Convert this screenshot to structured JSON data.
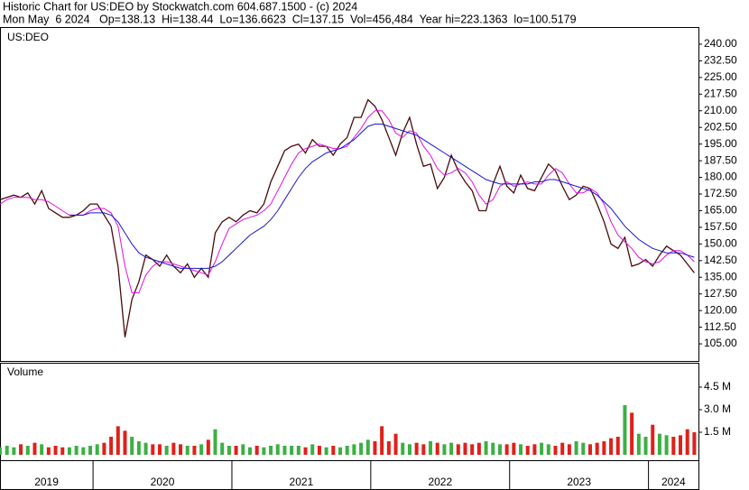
{
  "chart_data": [
    {
      "type": "line",
      "title": "Historic Chart for US:DEO by Stockwatch.com 604.687.1500 - (c) 2024",
      "subtitle": "Mon May  6 2024   Op=138.13  Hi=138.44  Lo=136.6623  Cl=137.15  Vol=456,484  Year hi=223.1363  lo=100.5179",
      "label": "US:DEO",
      "x": [
        2019.33,
        2019.38,
        2019.43,
        2019.48,
        2019.53,
        2019.58,
        2019.63,
        2019.68,
        2019.73,
        2019.78,
        2019.83,
        2019.88,
        2019.93,
        2019.98,
        2020.03,
        2020.08,
        2020.13,
        2020.18,
        2020.23,
        2020.28,
        2020.33,
        2020.38,
        2020.43,
        2020.48,
        2020.53,
        2020.58,
        2020.63,
        2020.68,
        2020.73,
        2020.78,
        2020.83,
        2020.88,
        2020.93,
        2020.98,
        2021.03,
        2021.08,
        2021.13,
        2021.18,
        2021.23,
        2021.28,
        2021.33,
        2021.38,
        2021.43,
        2021.48,
        2021.53,
        2021.58,
        2021.63,
        2021.68,
        2021.73,
        2021.78,
        2021.83,
        2021.88,
        2021.93,
        2021.98,
        2022.03,
        2022.08,
        2022.13,
        2022.18,
        2022.23,
        2022.28,
        2022.33,
        2022.38,
        2022.43,
        2022.48,
        2022.53,
        2022.58,
        2022.63,
        2022.68,
        2022.73,
        2022.78,
        2022.83,
        2022.88,
        2022.93,
        2022.98,
        2023.03,
        2023.08,
        2023.13,
        2023.18,
        2023.23,
        2023.28,
        2023.33,
        2023.38,
        2023.43,
        2023.48,
        2023.53,
        2023.58,
        2023.63,
        2023.68,
        2023.73,
        2023.78,
        2023.83,
        2023.88,
        2023.93,
        2023.98,
        2024.03,
        2024.08,
        2024.13,
        2024.18,
        2024.23,
        2024.28,
        2024.33
      ],
      "series": [
        {
          "color": "#4a0c0c",
          "values": [
            170,
            171,
            172,
            171,
            173,
            168,
            174,
            166,
            164,
            162,
            162,
            163,
            165,
            168,
            168,
            163,
            158,
            140,
            108,
            125,
            133,
            145,
            143,
            140,
            145,
            140,
            137,
            141,
            135,
            139,
            135,
            155,
            160,
            162,
            160,
            163,
            165,
            164,
            168,
            178,
            185,
            192,
            194,
            195,
            191,
            197,
            194,
            194,
            190,
            195,
            198,
            207,
            207,
            215,
            212,
            206,
            198,
            190,
            200,
            207,
            195,
            185,
            186,
            175,
            180,
            190,
            183,
            178,
            174,
            165,
            165,
            177,
            185,
            176,
            173,
            181,
            175,
            174,
            180,
            186,
            183,
            176,
            170,
            172,
            176,
            175,
            168,
            160,
            150,
            148,
            153,
            140,
            141,
            143,
            140,
            145,
            149,
            147,
            145,
            141,
            137
          ]
        },
        {
          "color": "#e010e0",
          "values": [
            168,
            170,
            171,
            171,
            171,
            170,
            170,
            169,
            167,
            165,
            163,
            163,
            163,
            165,
            166,
            166,
            164,
            158,
            140,
            128,
            128,
            136,
            140,
            142,
            142,
            141,
            140,
            139,
            138,
            137,
            136,
            142,
            150,
            157,
            159,
            161,
            162,
            163,
            165,
            168,
            174,
            180,
            186,
            191,
            193,
            194,
            195,
            194,
            193,
            193,
            194,
            198,
            202,
            207,
            210,
            210,
            206,
            200,
            198,
            201,
            200,
            194,
            190,
            184,
            181,
            182,
            184,
            182,
            178,
            172,
            168,
            170,
            176,
            178,
            176,
            177,
            178,
            177,
            177,
            181,
            184,
            182,
            177,
            173,
            173,
            175,
            173,
            168,
            160,
            154,
            151,
            148,
            144,
            142,
            141,
            142,
            145,
            147,
            147,
            145,
            142
          ]
        },
        {
          "color": "#1818d0",
          "values": [
            null,
            null,
            null,
            null,
            null,
            null,
            null,
            null,
            null,
            null,
            163,
            163,
            163,
            164,
            164,
            164,
            163,
            160,
            155,
            150,
            146,
            144,
            143,
            142,
            141,
            140,
            139,
            139,
            139,
            139,
            139,
            140,
            142,
            145,
            148,
            151,
            154,
            156,
            158,
            161,
            165,
            170,
            175,
            180,
            184,
            187,
            189,
            191,
            192,
            193,
            195,
            197,
            200,
            203,
            204,
            204,
            203,
            202,
            201,
            200,
            199,
            197,
            195,
            193,
            191,
            189,
            187,
            185,
            183,
            181,
            179,
            178,
            177,
            177,
            177,
            177,
            177,
            178,
            178,
            179,
            179,
            178,
            177,
            176,
            175,
            174,
            172,
            169,
            166,
            162,
            158,
            155,
            152,
            150,
            148,
            147,
            146,
            146,
            146,
            145,
            144
          ]
        }
      ],
      "xlim": [
        2019.33,
        2024.36
      ],
      "ylim": [
        97.3,
        247.3
      ],
      "yticks": [
        {
          "value": 240,
          "label": "240.00"
        },
        {
          "value": 232.5,
          "label": "232.50"
        },
        {
          "value": 225,
          "label": "225.00"
        },
        {
          "value": 217.5,
          "label": "217.50"
        },
        {
          "value": 210,
          "label": "210.00"
        },
        {
          "value": 202.5,
          "label": "202.50"
        },
        {
          "value": 195,
          "label": "195.00"
        },
        {
          "value": 187.5,
          "label": "187.50"
        },
        {
          "value": 180,
          "label": "180.00"
        },
        {
          "value": 172.5,
          "label": "172.50"
        },
        {
          "value": 165,
          "label": "165.00"
        },
        {
          "value": 157.5,
          "label": "157.50"
        },
        {
          "value": 150,
          "label": "150.00"
        },
        {
          "value": 142.5,
          "label": "142.50"
        },
        {
          "value": 135,
          "label": "135.00"
        },
        {
          "value": 127.5,
          "label": "127.50"
        },
        {
          "value": 120,
          "label": "120.00"
        },
        {
          "value": 112.5,
          "label": "112.50"
        },
        {
          "value": 105,
          "label": "105.00"
        }
      ]
    },
    {
      "type": "bar",
      "label": "Volume",
      "x": [
        2019.33,
        2019.38,
        2019.43,
        2019.48,
        2019.53,
        2019.58,
        2019.63,
        2019.68,
        2019.73,
        2019.78,
        2019.83,
        2019.88,
        2019.93,
        2019.98,
        2020.03,
        2020.08,
        2020.13,
        2020.18,
        2020.23,
        2020.28,
        2020.33,
        2020.38,
        2020.43,
        2020.48,
        2020.53,
        2020.58,
        2020.63,
        2020.68,
        2020.73,
        2020.78,
        2020.83,
        2020.88,
        2020.93,
        2020.98,
        2021.03,
        2021.08,
        2021.13,
        2021.18,
        2021.23,
        2021.28,
        2021.33,
        2021.38,
        2021.43,
        2021.48,
        2021.53,
        2021.58,
        2021.63,
        2021.68,
        2021.73,
        2021.78,
        2021.83,
        2021.88,
        2021.93,
        2021.98,
        2022.03,
        2022.08,
        2022.13,
        2022.18,
        2022.23,
        2022.28,
        2022.33,
        2022.38,
        2022.43,
        2022.48,
        2022.53,
        2022.58,
        2022.63,
        2022.68,
        2022.73,
        2022.78,
        2022.83,
        2022.88,
        2022.93,
        2022.98,
        2023.03,
        2023.08,
        2023.13,
        2023.18,
        2023.23,
        2023.28,
        2023.33,
        2023.38,
        2023.43,
        2023.48,
        2023.53,
        2023.58,
        2023.63,
        2023.68,
        2023.73,
        2023.78,
        2023.83,
        2023.88,
        2023.93,
        2023.98,
        2024.03,
        2024.08,
        2024.13,
        2024.18,
        2024.23,
        2024.28,
        2024.33
      ],
      "values": [
        0.5,
        0.6,
        0.5,
        0.7,
        0.6,
        0.8,
        0.7,
        0.5,
        0.6,
        0.5,
        0.5,
        0.6,
        0.5,
        0.6,
        0.7,
        0.8,
        1.2,
        1.9,
        1.6,
        1.2,
        0.9,
        0.8,
        0.7,
        0.7,
        0.6,
        0.8,
        0.7,
        0.6,
        0.6,
        0.7,
        1.0,
        1.7,
        0.8,
        0.6,
        0.6,
        0.7,
        0.5,
        0.6,
        0.5,
        0.6,
        0.7,
        0.6,
        0.6,
        0.6,
        0.5,
        0.7,
        0.6,
        0.5,
        0.6,
        0.5,
        0.6,
        0.7,
        0.8,
        1.0,
        0.9,
        1.9,
        0.9,
        1.4,
        0.8,
        0.7,
        0.8,
        0.7,
        0.9,
        0.8,
        0.7,
        0.8,
        0.7,
        0.8,
        0.7,
        0.8,
        0.9,
        0.8,
        0.7,
        0.7,
        0.8,
        0.7,
        0.6,
        0.7,
        0.8,
        0.7,
        0.6,
        0.8,
        0.7,
        0.9,
        0.8,
        0.7,
        0.8,
        0.9,
        1.1,
        1.2,
        3.3,
        2.8,
        1.4,
        1.2,
        2.0,
        1.4,
        1.3,
        1.2,
        1.3,
        1.7,
        1.5
      ],
      "up_color": "#3cb043",
      "down_color": "#e0201a",
      "xlim": [
        2019.33,
        2024.36
      ],
      "ylim": [
        0,
        6.06
      ],
      "yticks": [
        {
          "value": 4.5,
          "label": "4.5 M"
        },
        {
          "value": 3.0,
          "label": "3.0 M"
        },
        {
          "value": 1.5,
          "label": "1.5 M"
        }
      ],
      "xticks": [
        2019,
        2020,
        2021,
        2022,
        2023,
        2024
      ]
    }
  ]
}
